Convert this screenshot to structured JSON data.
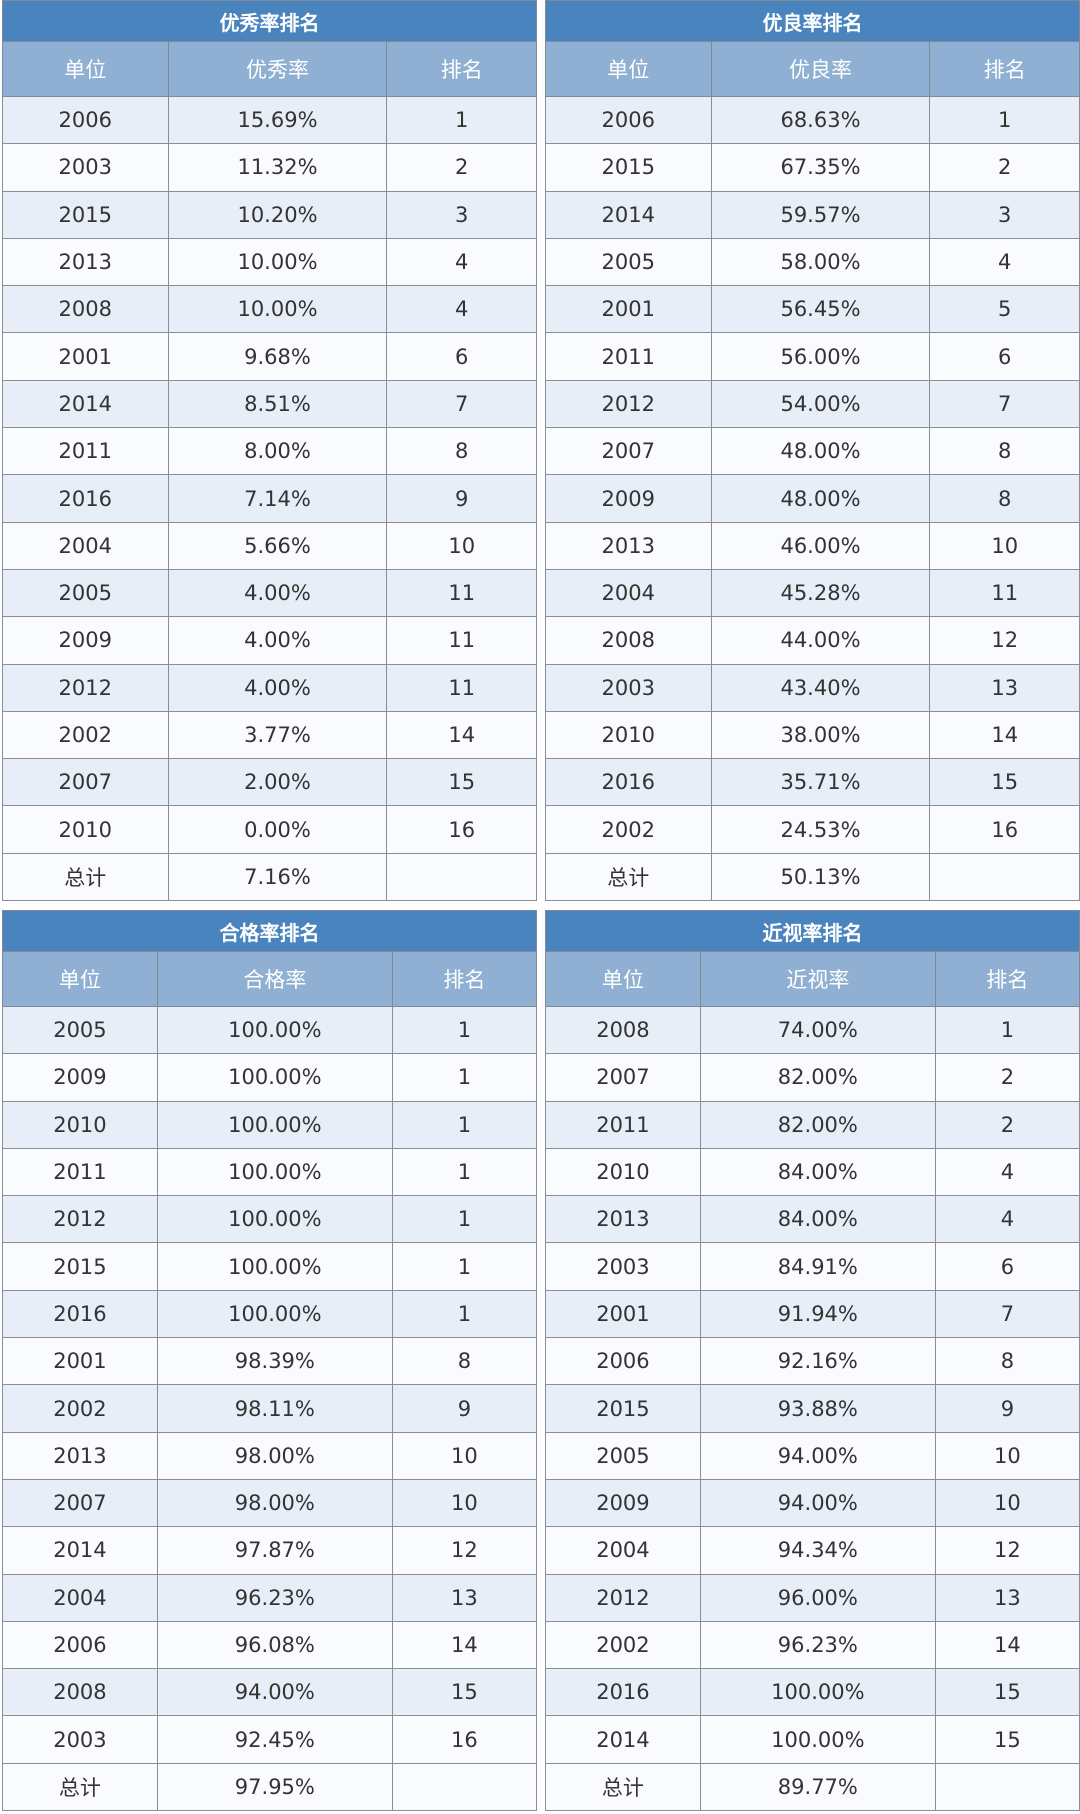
{
  "tables": [
    {
      "title": "优秀率排名",
      "headers": [
        "单位",
        "优秀率",
        "排名"
      ],
      "rows": [
        [
          "2006",
          "15.69%",
          "1"
        ],
        [
          "2003",
          "11.32%",
          "2"
        ],
        [
          "2015",
          "10.20%",
          "3"
        ],
        [
          "2013",
          "10.00%",
          "4"
        ],
        [
          "2008",
          "10.00%",
          "4"
        ],
        [
          "2001",
          "9.68%",
          "6"
        ],
        [
          "2014",
          "8.51%",
          "7"
        ],
        [
          "2011",
          "8.00%",
          "8"
        ],
        [
          "2016",
          "7.14%",
          "9"
        ],
        [
          "2004",
          "5.66%",
          "10"
        ],
        [
          "2005",
          "4.00%",
          "11"
        ],
        [
          "2009",
          "4.00%",
          "11"
        ],
        [
          "2012",
          "4.00%",
          "11"
        ],
        [
          "2002",
          "3.77%",
          "14"
        ],
        [
          "2007",
          "2.00%",
          "15"
        ],
        [
          "2010",
          "0.00%",
          "16"
        ]
      ],
      "total": [
        "总计",
        "7.16%",
        ""
      ]
    },
    {
      "title": "优良率排名",
      "headers": [
        "单位",
        "优良率",
        "排名"
      ],
      "rows": [
        [
          "2006",
          "68.63%",
          "1"
        ],
        [
          "2015",
          "67.35%",
          "2"
        ],
        [
          "2014",
          "59.57%",
          "3"
        ],
        [
          "2005",
          "58.00%",
          "4"
        ],
        [
          "2001",
          "56.45%",
          "5"
        ],
        [
          "2011",
          "56.00%",
          "6"
        ],
        [
          "2012",
          "54.00%",
          "7"
        ],
        [
          "2007",
          "48.00%",
          "8"
        ],
        [
          "2009",
          "48.00%",
          "8"
        ],
        [
          "2013",
          "46.00%",
          "10"
        ],
        [
          "2004",
          "45.28%",
          "11"
        ],
        [
          "2008",
          "44.00%",
          "12"
        ],
        [
          "2003",
          "43.40%",
          "13"
        ],
        [
          "2010",
          "38.00%",
          "14"
        ],
        [
          "2016",
          "35.71%",
          "15"
        ],
        [
          "2002",
          "24.53%",
          "16"
        ]
      ],
      "total": [
        "总计",
        "50.13%",
        ""
      ]
    },
    {
      "title": "合格率排名",
      "headers": [
        "单位",
        "合格率",
        "排名"
      ],
      "rows": [
        [
          "2005",
          "100.00%",
          "1"
        ],
        [
          "2009",
          "100.00%",
          "1"
        ],
        [
          "2010",
          "100.00%",
          "1"
        ],
        [
          "2011",
          "100.00%",
          "1"
        ],
        [
          "2012",
          "100.00%",
          "1"
        ],
        [
          "2015",
          "100.00%",
          "1"
        ],
        [
          "2016",
          "100.00%",
          "1"
        ],
        [
          "2001",
          "98.39%",
          "8"
        ],
        [
          "2002",
          "98.11%",
          "9"
        ],
        [
          "2013",
          "98.00%",
          "10"
        ],
        [
          "2007",
          "98.00%",
          "10"
        ],
        [
          "2014",
          "97.87%",
          "12"
        ],
        [
          "2004",
          "96.23%",
          "13"
        ],
        [
          "2006",
          "96.08%",
          "14"
        ],
        [
          "2008",
          "94.00%",
          "15"
        ],
        [
          "2003",
          "92.45%",
          "16"
        ]
      ],
      "total": [
        "总计",
        "97.95%",
        ""
      ]
    },
    {
      "title": "近视率排名",
      "headers": [
        "单位",
        "近视率",
        "排名"
      ],
      "rows": [
        [
          "2008",
          "74.00%",
          "1"
        ],
        [
          "2007",
          "82.00%",
          "2"
        ],
        [
          "2011",
          "82.00%",
          "2"
        ],
        [
          "2010",
          "84.00%",
          "4"
        ],
        [
          "2013",
          "84.00%",
          "4"
        ],
        [
          "2003",
          "84.91%",
          "6"
        ],
        [
          "2001",
          "91.94%",
          "7"
        ],
        [
          "2006",
          "92.16%",
          "8"
        ],
        [
          "2015",
          "93.88%",
          "9"
        ],
        [
          "2005",
          "94.00%",
          "10"
        ],
        [
          "2009",
          "94.00%",
          "10"
        ],
        [
          "2004",
          "94.34%",
          "12"
        ],
        [
          "2012",
          "96.00%",
          "13"
        ],
        [
          "2002",
          "96.23%",
          "14"
        ],
        [
          "2016",
          "100.00%",
          "15"
        ],
        [
          "2014",
          "100.00%",
          "15"
        ]
      ],
      "total": [
        "总计",
        "89.77%",
        ""
      ]
    }
  ]
}
